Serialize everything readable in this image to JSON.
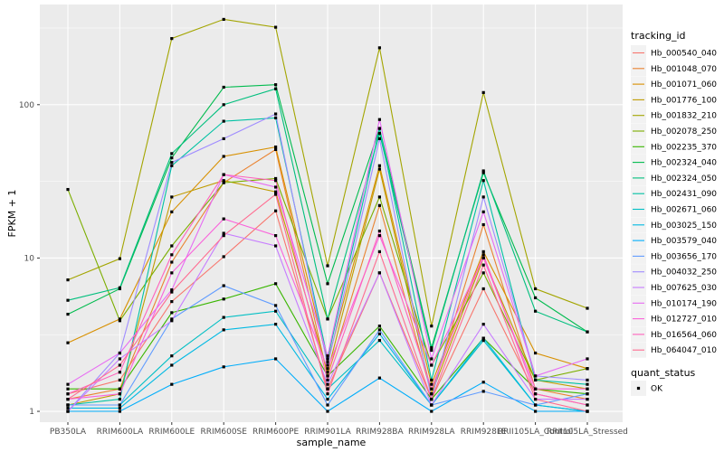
{
  "chart_data": {
    "type": "line",
    "xlabel": "sample_name",
    "ylabel": "FPKM + 1",
    "y_scale": "log10",
    "ylim": [
      0.85,
      450
    ],
    "y_ticks": [
      {
        "value": 1,
        "label": "1"
      },
      {
        "value": 10,
        "label": "10"
      },
      {
        "value": 100,
        "label": "100"
      }
    ],
    "grid": true,
    "panel_background": "#ebebeb",
    "legend_position": "right",
    "categories": [
      "PB350LA",
      "RRIM600LA",
      "RRIM600LE",
      "RRIM600SE",
      "RRIM600PE",
      "RRIM901LA",
      "RRIM928BA",
      "RRIM928LA",
      "RRIM928LE",
      "RRII105LA_Control",
      "RRII105LA_Stressed"
    ],
    "series": [
      {
        "name": "Hb_000540_040",
        "color": "#F8766D",
        "values": [
          1.3,
          1.6,
          5.2,
          10.2,
          20.3,
          1.4,
          8.0,
          1.2,
          6.3,
          1.3,
          1.1
        ]
      },
      {
        "name": "Hb_001048_070",
        "color": "#EA8331",
        "values": [
          1.2,
          1.4,
          9.4,
          31.0,
          51.0,
          1.7,
          22.0,
          1.3,
          16.5,
          1.4,
          1.2
        ]
      },
      {
        "name": "Hb_001071_060",
        "color": "#D89000",
        "values": [
          2.8,
          4.0,
          20.0,
          46.0,
          53.0,
          2.1,
          40.0,
          1.5,
          11.0,
          2.4,
          1.9
        ]
      },
      {
        "name": "Hb_001776_100",
        "color": "#C09B00",
        "values": [
          1.1,
          1.3,
          25.0,
          32.0,
          27.0,
          1.8,
          38.0,
          1.3,
          10.0,
          1.6,
          1.4
        ]
      },
      {
        "name": "Hb_001832_210",
        "color": "#A3A500",
        "values": [
          7.2,
          9.9,
          270.0,
          360.0,
          320.0,
          8.9,
          235.0,
          3.6,
          120.0,
          6.3,
          4.7
        ]
      },
      {
        "name": "Hb_002078_250",
        "color": "#7CAE00",
        "values": [
          28.0,
          3.9,
          12.0,
          31.0,
          33.0,
          4.0,
          25.0,
          2.0,
          8.0,
          1.6,
          1.9
        ]
      },
      {
        "name": "Hb_002235_370",
        "color": "#39B600",
        "values": [
          1.4,
          1.4,
          4.4,
          5.4,
          6.8,
          1.7,
          3.6,
          1.2,
          3.0,
          1.4,
          1.3
        ]
      },
      {
        "name": "Hb_002324_040",
        "color": "#00BB4E",
        "values": [
          4.3,
          6.3,
          45.0,
          130.0,
          135.0,
          6.8,
          70.0,
          2.6,
          36.0,
          5.5,
          3.3
        ]
      },
      {
        "name": "Hb_002324_050",
        "color": "#00BF7D",
        "values": [
          5.3,
          6.4,
          48.0,
          100.0,
          127.0,
          4.0,
          65.0,
          2.5,
          37.0,
          4.5,
          3.3
        ]
      },
      {
        "name": "Hb_002431_090",
        "color": "#00C1A3",
        "values": [
          1.1,
          1.2,
          40.0,
          78.0,
          82.0,
          2.2,
          70.0,
          1.6,
          32.0,
          1.6,
          1.5
        ]
      },
      {
        "name": "Hb_002671_060",
        "color": "#00BFC4",
        "values": [
          1.1,
          1.1,
          2.3,
          4.1,
          4.5,
          1.4,
          2.9,
          1.1,
          2.9,
          1.1,
          1.0
        ]
      },
      {
        "name": "Hb_003025_150",
        "color": "#00B9E3",
        "values": [
          1.05,
          1.05,
          2.0,
          3.4,
          3.7,
          1.2,
          3.2,
          1.1,
          3.0,
          1.1,
          1.0
        ]
      },
      {
        "name": "Hb_003579_040",
        "color": "#00ADFA",
        "values": [
          1.0,
          1.0,
          1.5,
          1.95,
          2.2,
          1.0,
          1.65,
          1.0,
          1.55,
          1.0,
          1.0
        ]
      },
      {
        "name": "Hb_003656_170",
        "color": "#619CFF",
        "values": [
          1.1,
          1.1,
          4.0,
          6.6,
          4.9,
          1.1,
          3.4,
          1.1,
          1.35,
          1.1,
          1.3
        ]
      },
      {
        "name": "Hb_004032_250",
        "color": "#9F8CFF",
        "values": [
          1.0,
          2.4,
          42.0,
          60.0,
          87.0,
          2.0,
          60.0,
          1.2,
          25.0,
          1.7,
          1.6
        ]
      },
      {
        "name": "Hb_007625_030",
        "color": "#C77CFF",
        "values": [
          1.0,
          2.2,
          3.9,
          14.5,
          12.0,
          1.5,
          8.0,
          1.1,
          3.7,
          1.2,
          1.2
        ]
      },
      {
        "name": "Hb_010174_190",
        "color": "#E76BF3",
        "values": [
          1.5,
          2.4,
          6.2,
          35.0,
          29.0,
          2.3,
          80.0,
          2.2,
          20.0,
          1.7,
          2.2
        ]
      },
      {
        "name": "Hb_012727_010",
        "color": "#FA62DB",
        "values": [
          1.2,
          1.3,
          8.0,
          18.0,
          14.0,
          1.9,
          14.0,
          2.0,
          10.0,
          1.4,
          1.4
        ]
      },
      {
        "name": "Hb_016564_060",
        "color": "#FF62BC",
        "values": [
          1.3,
          1.8,
          10.5,
          35.0,
          32.0,
          1.6,
          15.0,
          1.4,
          10.5,
          1.3,
          1.1
        ]
      },
      {
        "name": "Hb_064047_010",
        "color": "#FF6C91",
        "values": [
          1.2,
          2.0,
          6.0,
          14.0,
          26.0,
          1.3,
          11.0,
          1.2,
          9.0,
          1.2,
          1.0
        ]
      }
    ],
    "legend_title": "tracking_id",
    "shape_legend": {
      "title": "quant_status",
      "items": [
        "OK"
      ]
    }
  }
}
